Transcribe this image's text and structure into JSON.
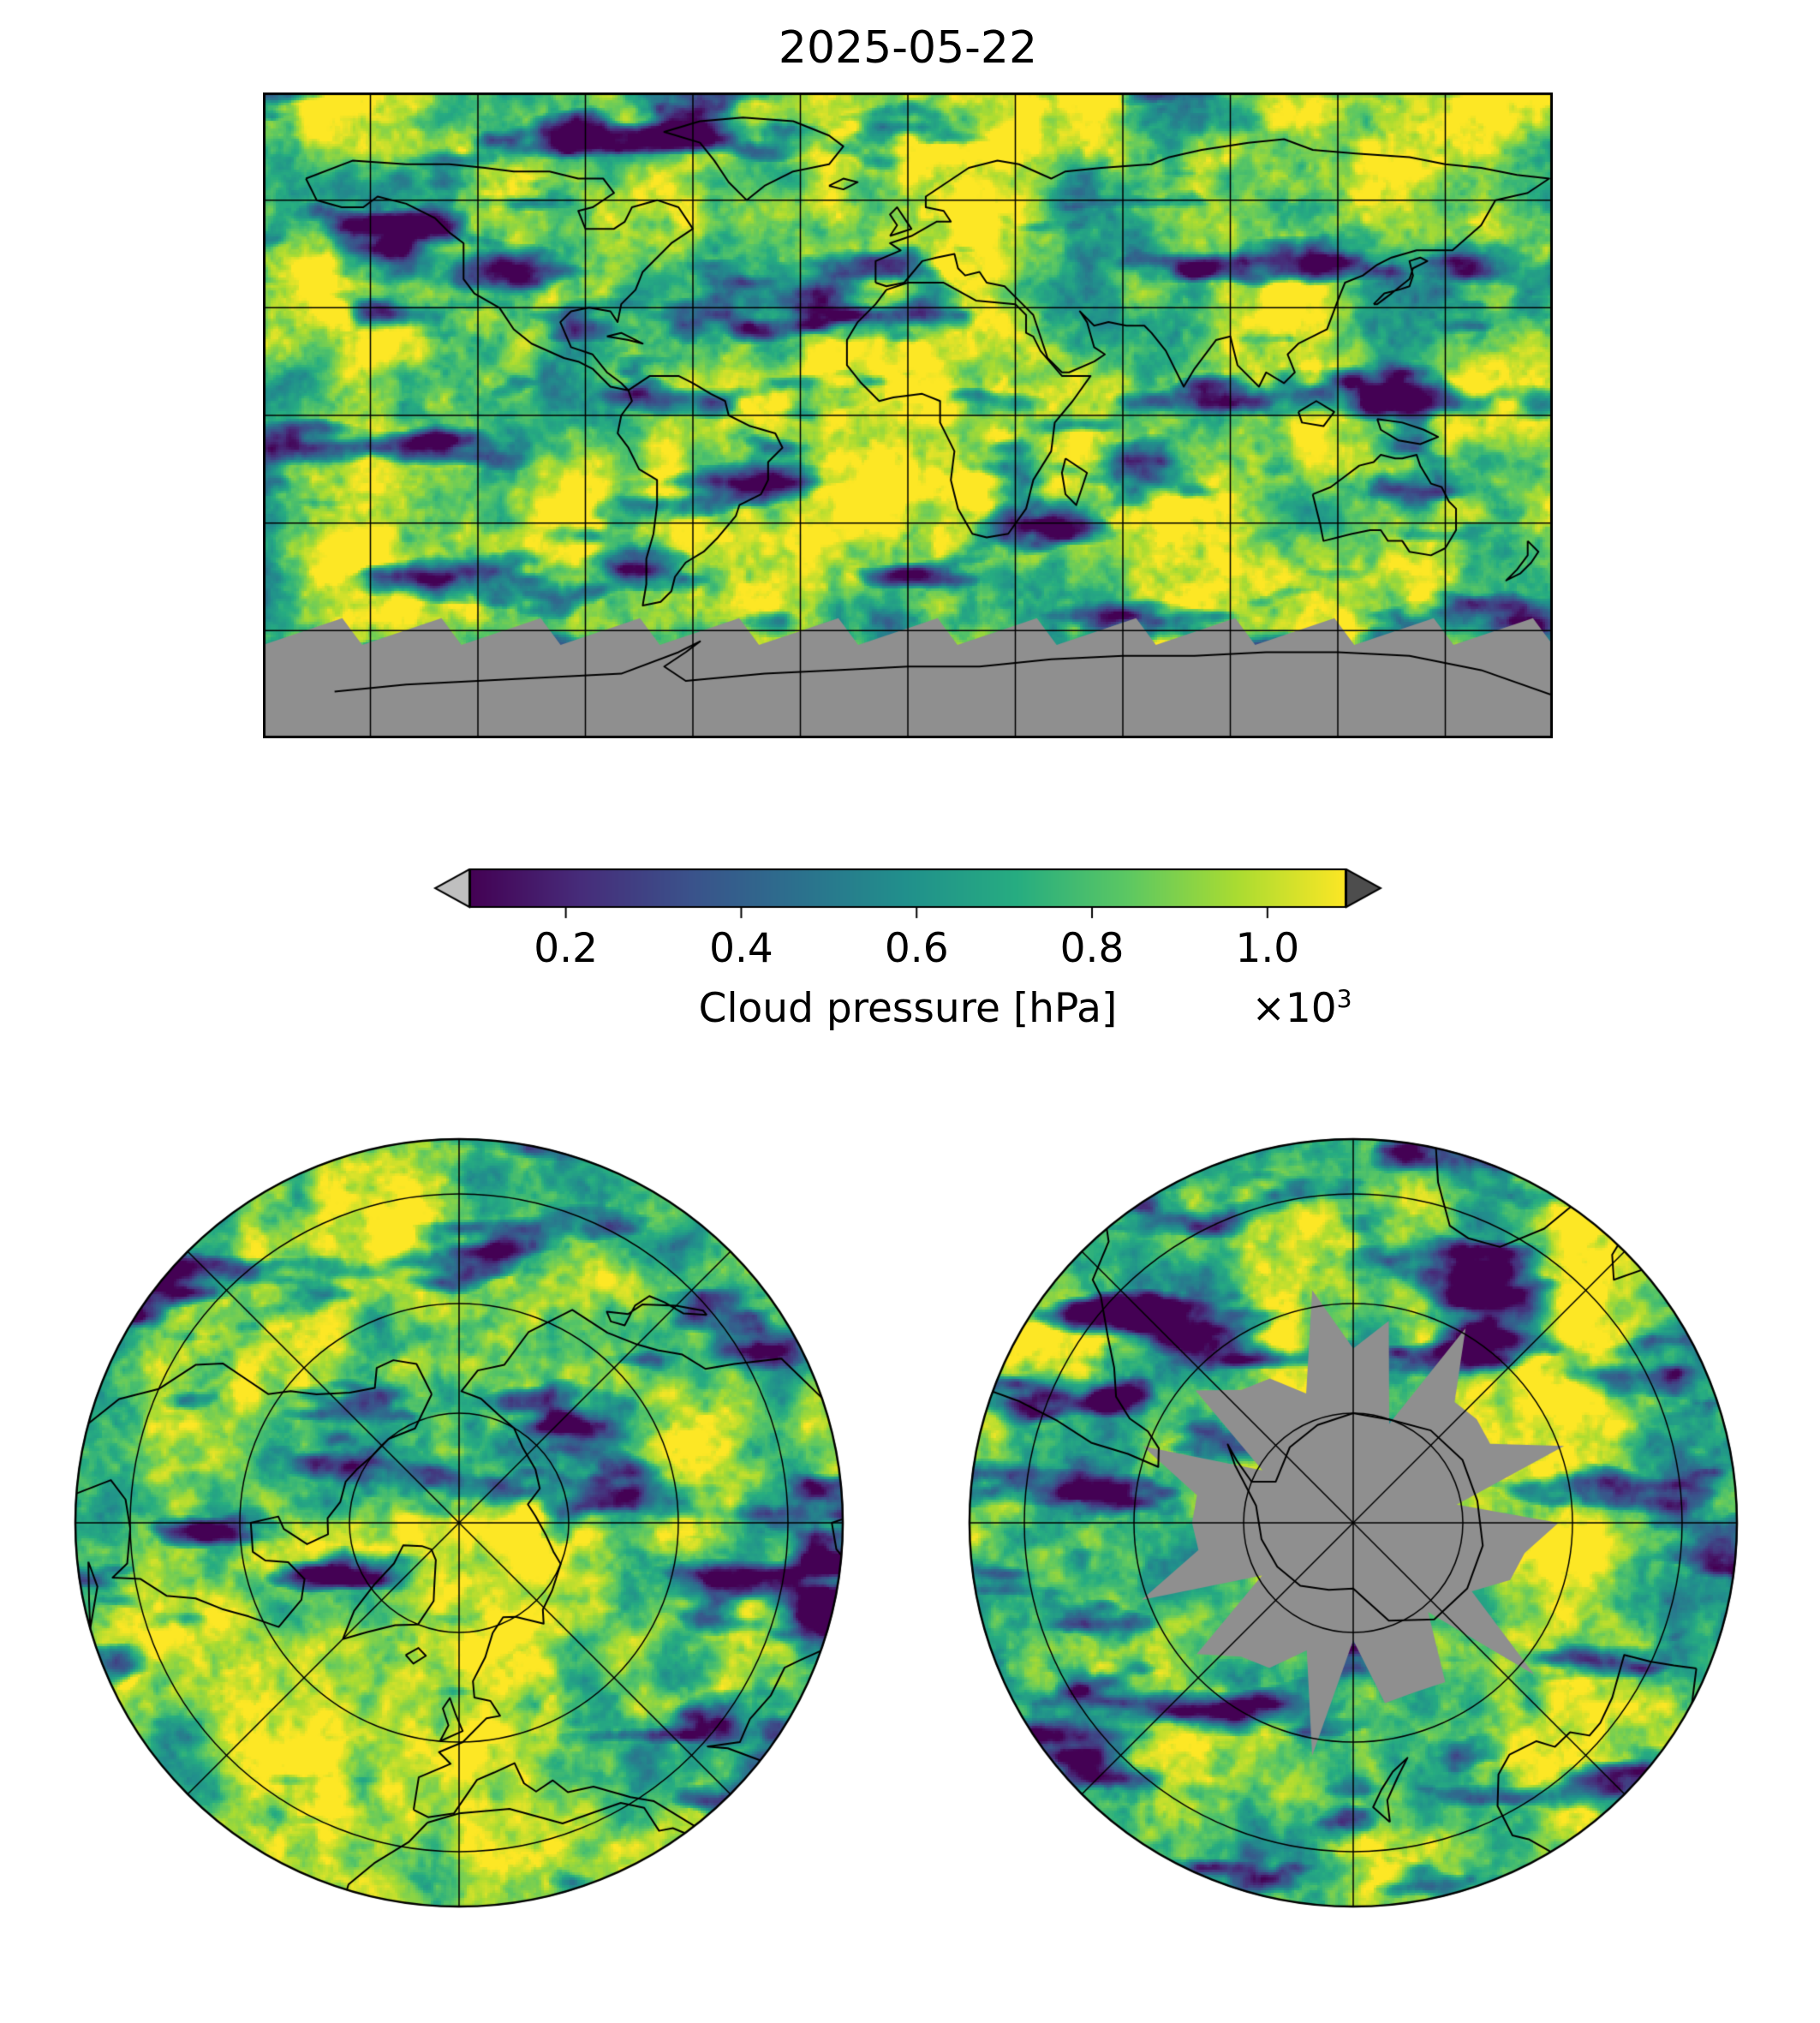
{
  "title": "2025-05-22",
  "colorbar": {
    "label": "Cloud pressure [hPa]",
    "ticks": [
      "0.2",
      "0.4",
      "0.6",
      "0.8",
      "1.0"
    ],
    "tick_values": [
      0.2,
      0.4,
      0.6,
      0.8,
      1.0
    ],
    "vmin": 0.09,
    "vmax": 1.09,
    "multiplier_base": "×10",
    "multiplier_exp": "3",
    "under_color": "#bfbfbf",
    "over_color": "#4d4d4d"
  },
  "colors": {
    "no_data": "#8f8f8f",
    "grid": "#000000",
    "coast": "#000000",
    "background": "#ffffff",
    "viridis_stops": [
      "#440154",
      "#472c7a",
      "#3b528b",
      "#2c718e",
      "#21918c",
      "#27ad81",
      "#5cc863",
      "#aadc32",
      "#fde725"
    ]
  },
  "chart_data": [
    {
      "type": "heatmap",
      "id": "global-map",
      "title": "2025-05-22",
      "projection": "equirectangular",
      "variable": "Cloud pressure",
      "units": "hPa",
      "colormap": "viridis",
      "lon_range": [
        -180,
        180
      ],
      "lat_range": [
        -90,
        90
      ],
      "gridline_spacing_deg": 30,
      "no_data_color": "#8f8f8f",
      "no_data_region": "Antarctica / southern polar night south of ~60S with jagged swath edge",
      "value_range_hPa": [
        90,
        1090
      ],
      "description": "Satellite cloud pressure field; mostly 700-1000 hPa (green-yellow) with cloud bands/storm systems at 100-500 hPa (blue-purple), coastlines drawn in black"
    },
    {
      "type": "colorbar",
      "orientation": "horizontal",
      "colormap": "viridis",
      "ticks": [
        0.2,
        0.4,
        0.6,
        0.8,
        1.0
      ],
      "tick_labels": [
        "0.2",
        "0.4",
        "0.6",
        "0.8",
        "1.0"
      ],
      "scale_label": "×10³",
      "label": "Cloud pressure [hPa]",
      "vmin": 0.09,
      "vmax": 1.09,
      "extend": "both",
      "under_color": "#bfbfbf",
      "over_color": "#4d4d4d"
    },
    {
      "type": "heatmap",
      "id": "north-polar-map",
      "projection": "azimuthal (North Pole)",
      "hemisphere": "north",
      "lat_limit": 20,
      "gridline_circle_lats": [
        70,
        50,
        30
      ],
      "meridian_spacing_deg": 45,
      "colormap": "viridis",
      "no_data_region": "none (fully sunlit)"
    },
    {
      "type": "heatmap",
      "id": "south-polar-map",
      "projection": "azimuthal (South Pole)",
      "hemisphere": "south",
      "lat_limit": 20,
      "gridline_circle_lats": [
        70,
        50,
        30
      ],
      "meridian_spacing_deg": 45,
      "colormap": "viridis",
      "no_data_region": "jagged gray polar-night region covering Antarctica, Antarctic coastline outlined in black"
    }
  ]
}
